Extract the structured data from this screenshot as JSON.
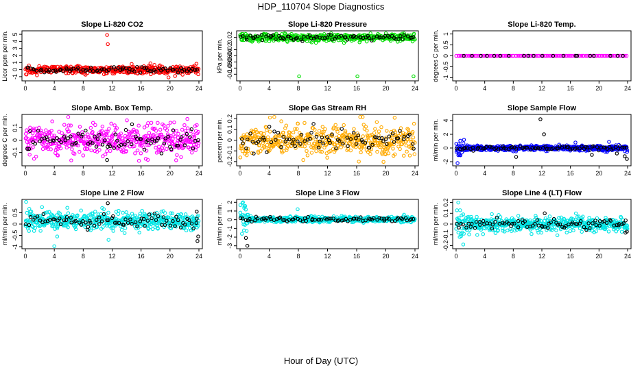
{
  "page_title": "HDP_110704  Slope Diagnostics",
  "x_axis_label": "Hour of Day (UTC)",
  "x_ticks": [
    0,
    4,
    8,
    12,
    16,
    20,
    24
  ],
  "chart_data": [
    {
      "type": "scatter",
      "title": "Slope Li-820 CO2",
      "ylabel": "Licor ppm per min.",
      "xlim": [
        0,
        24
      ],
      "ylim": [
        -1.3,
        5.2
      ],
      "yticks": [
        -1,
        0,
        1,
        2,
        3,
        4,
        5
      ],
      "color": "#ff0000",
      "center": 0,
      "spread": 0.25,
      "edge_spread": 0,
      "outliers": [
        [
          11.3,
          4.9
        ],
        [
          11.4,
          3.6
        ],
        [
          17.3,
          0.9
        ],
        [
          18.6,
          0.6
        ],
        [
          14.7,
          0.8
        ],
        [
          19.8,
          -1.1
        ],
        [
          20.7,
          -0.9
        ],
        [
          1.6,
          -0.8
        ]
      ],
      "black_outliers": []
    },
    {
      "type": "scatter",
      "title": "Slope Li-820 Pressure",
      "ylabel": "kPa per min.",
      "xlim": [
        0,
        24
      ],
      "ylim": [
        -0.115,
        0.035
      ],
      "yticks": [
        -0.1,
        -0.08,
        -0.06,
        -0.04,
        -0.02,
        0.02
      ],
      "color": "#00dd00",
      "center": 0.02,
      "spread": 0.006,
      "edge_spread": 0,
      "outliers": [
        [
          8.1,
          -0.107
        ],
        [
          16.1,
          -0.107
        ],
        [
          23.8,
          -0.107
        ]
      ],
      "black_outliers": []
    },
    {
      "type": "scatter",
      "title": "Slope Li-820 Temp.",
      "ylabel": "degrees C per min.",
      "xlim": [
        0,
        24
      ],
      "ylim": [
        -1.05,
        1.05
      ],
      "yticks": [
        -1.0,
        -0.5,
        0.0,
        0.5,
        1.0
      ],
      "color": "#ff00ff",
      "center": 0,
      "spread": 0,
      "edge_spread": 0,
      "outliers": [],
      "black_outliers": []
    },
    {
      "type": "scatter",
      "title": "Slope Amb. Box Temp.",
      "ylabel": "degrees C per min.",
      "xlim": [
        0,
        24
      ],
      "ylim": [
        -0.19,
        0.19
      ],
      "yticks": [
        -0.1,
        0.0,
        0.1
      ],
      "color": "#ff00ff",
      "center": 0,
      "spread": 0.06,
      "edge_spread": 0,
      "outliers": [
        [
          22.4,
          0.17
        ],
        [
          1.2,
          -0.15
        ]
      ],
      "black_outliers": [
        [
          11.3,
          -0.16
        ]
      ]
    },
    {
      "type": "scatter",
      "title": "Slope Gas Stream RH",
      "ylabel": "percent per min.",
      "xlim": [
        0,
        24
      ],
      "ylim": [
        -0.22,
        0.22
      ],
      "yticks": [
        -0.2,
        -0.1,
        0.0,
        0.1,
        0.2
      ],
      "color": "#ffaa00",
      "center": 0,
      "spread": 0.07,
      "edge_spread": 0,
      "outliers": [
        [
          4.1,
          0.21
        ],
        [
          16.3,
          -0.2
        ]
      ],
      "black_outliers": []
    },
    {
      "type": "scatter",
      "title": "Slope Sample Flow",
      "ylabel": "ml/min per min.",
      "xlim": [
        0,
        24
      ],
      "ylim": [
        -2.3,
        4.6
      ],
      "yticks": [
        -2,
        0,
        2,
        4
      ],
      "color": "#0000ff",
      "center": 0,
      "spread": 0.18,
      "edge_spread": 0.6,
      "outliers": [
        [
          0.2,
          -2.2
        ],
        [
          1.1,
          1.2
        ],
        [
          16.7,
          0.8
        ],
        [
          21.4,
          0.9
        ]
      ],
      "black_outliers": [
        [
          11.8,
          4.2
        ],
        [
          23.9,
          -1.6
        ],
        [
          23.6,
          -1.2
        ],
        [
          12.3,
          2.0
        ],
        [
          19.0,
          -1.0
        ],
        [
          8.4,
          -1.3
        ],
        [
          22.5,
          -0.8
        ]
      ]
    },
    {
      "type": "scatter",
      "title": "Slope Line 2 Flow",
      "ylabel": "ml/min per min.",
      "xlim": [
        0,
        24
      ],
      "ylim": [
        -1.0,
        1.0
      ],
      "yticks": [
        -1.0,
        -0.5,
        0.0,
        0.5
      ],
      "color": "#00e5e5",
      "center": 0.15,
      "spread": 0.18,
      "edge_spread": 0.4,
      "outliers": [
        [
          0.1,
          0.98
        ],
        [
          4.0,
          -0.98
        ],
        [
          5.8,
          0.72
        ],
        [
          2.3,
          0.75
        ],
        [
          11.5,
          -0.7
        ],
        [
          7.7,
          0.6
        ],
        [
          4.4,
          -0.55
        ]
      ],
      "black_outliers": [
        [
          11.4,
          0.92
        ],
        [
          23.8,
          -0.75
        ],
        [
          23.9,
          -0.55
        ],
        [
          23.7,
          0.55
        ],
        [
          8.6,
          -0.25
        ]
      ]
    },
    {
      "type": "scatter",
      "title": "Slope Line 3 Flow",
      "ylabel": "ml/min per min.",
      "xlim": [
        0,
        24
      ],
      "ylim": [
        -3.1,
        2.1
      ],
      "yticks": [
        -3,
        -2,
        -1,
        0,
        1,
        2
      ],
      "color": "#00e5e5",
      "center": 0.05,
      "spread": 0.15,
      "edge_spread": 1.2,
      "outliers": [
        [
          0.4,
          2.0
        ],
        [
          0.6,
          1.5
        ],
        [
          7.9,
          1.2
        ],
        [
          0.9,
          -1.3
        ]
      ],
      "black_outliers": [
        [
          0.8,
          -2.1
        ],
        [
          1.0,
          -3.0
        ]
      ]
    },
    {
      "type": "scatter",
      "title": "Slope Line 4 (LT) Flow",
      "ylabel": "ml/min per min.",
      "xlim": [
        0,
        24
      ],
      "ylim": [
        -0.21,
        0.21
      ],
      "yticks": [
        -0.2,
        -0.1,
        0.0,
        0.1,
        0.2
      ],
      "color": "#00e5e5",
      "center": 0,
      "spread": 0.035,
      "edge_spread": 0.09,
      "outliers": [
        [
          0.3,
          0.2
        ],
        [
          1.0,
          -0.19
        ],
        [
          0.5,
          -0.12
        ]
      ],
      "black_outliers": [
        [
          12.4,
          0.1
        ],
        [
          23.7,
          -0.08
        ],
        [
          23.9,
          -0.07
        ]
      ]
    }
  ]
}
